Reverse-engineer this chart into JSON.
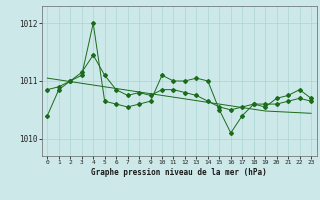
{
  "title": "Graphe pression niveau de la mer (hPa)",
  "x_labels": [
    "0",
    "1",
    "2",
    "3",
    "4",
    "5",
    "6",
    "7",
    "8",
    "9",
    "10",
    "11",
    "12",
    "13",
    "14",
    "15",
    "16",
    "17",
    "18",
    "19",
    "20",
    "21",
    "22",
    "23"
  ],
  "ylim": [
    1009.7,
    1012.3
  ],
  "yticks": [
    1010,
    1011,
    1012
  ],
  "bg_color": "#cce8e8",
  "grid_color": "#aad4d4",
  "line_color": "#1a6b1a",
  "y_jagged": [
    1010.4,
    1010.85,
    1011.0,
    1011.1,
    1012.0,
    1010.65,
    1010.6,
    1010.55,
    1010.6,
    1010.65,
    1011.1,
    1011.0,
    1011.0,
    1011.05,
    1011.0,
    1010.5,
    1010.1,
    1010.4,
    1010.6,
    1010.55,
    1010.7,
    1010.75,
    1010.85,
    1010.7
  ],
  "y_smooth": [
    1010.85,
    1010.9,
    1011.0,
    1011.15,
    1011.45,
    1011.1,
    1010.85,
    1010.75,
    1010.8,
    1010.75,
    1010.85,
    1010.85,
    1010.8,
    1010.75,
    1010.65,
    1010.55,
    1010.5,
    1010.55,
    1010.6,
    1010.6,
    1010.6,
    1010.65,
    1010.7,
    1010.65
  ],
  "y_trend": [
    1011.05,
    1011.02,
    1010.99,
    1010.96,
    1010.93,
    1010.9,
    1010.87,
    1010.84,
    1010.81,
    1010.78,
    1010.75,
    1010.72,
    1010.69,
    1010.66,
    1010.63,
    1010.6,
    1010.57,
    1010.54,
    1010.51,
    1010.48,
    1010.47,
    1010.46,
    1010.45,
    1010.44
  ]
}
